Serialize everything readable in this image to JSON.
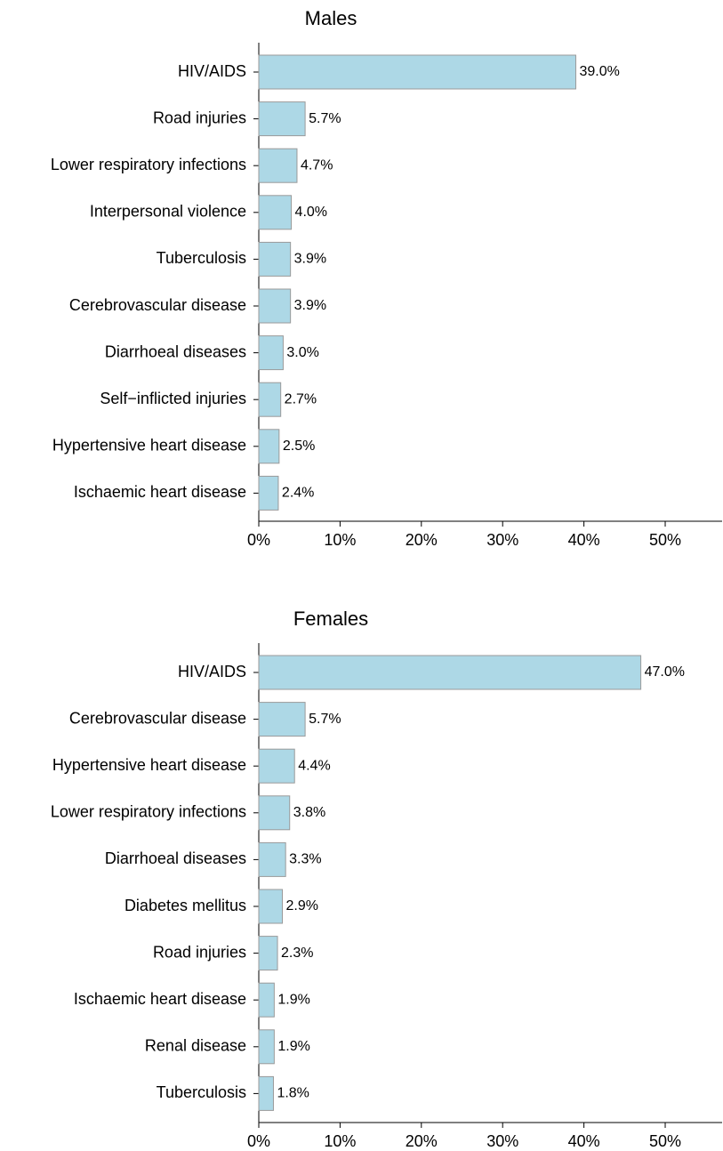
{
  "chart_data": [
    {
      "type": "barh",
      "title": "Males",
      "categories": [
        "HIV/AIDS",
        "Road injuries",
        "Lower respiratory infections",
        "Interpersonal violence",
        "Tuberculosis",
        "Cerebrovascular disease",
        "Diarrhoeal diseases",
        "Self−inflicted injuries",
        "Hypertensive heart disease",
        "Ischaemic heart disease"
      ],
      "values": [
        39.0,
        5.7,
        4.7,
        4.0,
        3.9,
        3.9,
        3.0,
        2.7,
        2.5,
        2.4
      ],
      "value_labels": [
        "39.0%",
        "5.7%",
        "4.7%",
        "4.0%",
        "3.9%",
        "3.9%",
        "3.0%",
        "2.7%",
        "2.5%",
        "2.4%"
      ],
      "color": "#add8e6",
      "xlim": [
        0,
        57
      ],
      "xticks": [
        {
          "value": 0,
          "label": "0%"
        },
        {
          "value": 10,
          "label": "10%"
        },
        {
          "value": 20,
          "label": "20%"
        },
        {
          "value": 30,
          "label": "30%"
        },
        {
          "value": 40,
          "label": "40%"
        },
        {
          "value": 50,
          "label": "50%"
        }
      ]
    },
    {
      "type": "barh",
      "title": "Females",
      "categories": [
        "HIV/AIDS",
        "Cerebrovascular disease",
        "Hypertensive heart disease",
        "Lower respiratory infections",
        "Diarrhoeal diseases",
        "Diabetes mellitus",
        "Road injuries",
        "Ischaemic heart disease",
        "Renal disease",
        "Tuberculosis"
      ],
      "values": [
        47.0,
        5.7,
        4.4,
        3.8,
        3.3,
        2.9,
        2.3,
        1.9,
        1.9,
        1.8
      ],
      "value_labels": [
        "47.0%",
        "5.7%",
        "4.4%",
        "3.8%",
        "3.3%",
        "2.9%",
        "2.3%",
        "1.9%",
        "1.9%",
        "1.8%"
      ],
      "color": "#add8e6",
      "xlim": [
        0,
        57
      ],
      "xticks": [
        {
          "value": 0,
          "label": "0%"
        },
        {
          "value": 10,
          "label": "10%"
        },
        {
          "value": 20,
          "label": "20%"
        },
        {
          "value": 30,
          "label": "30%"
        },
        {
          "value": 40,
          "label": "40%"
        },
        {
          "value": 50,
          "label": "50%"
        }
      ]
    }
  ]
}
